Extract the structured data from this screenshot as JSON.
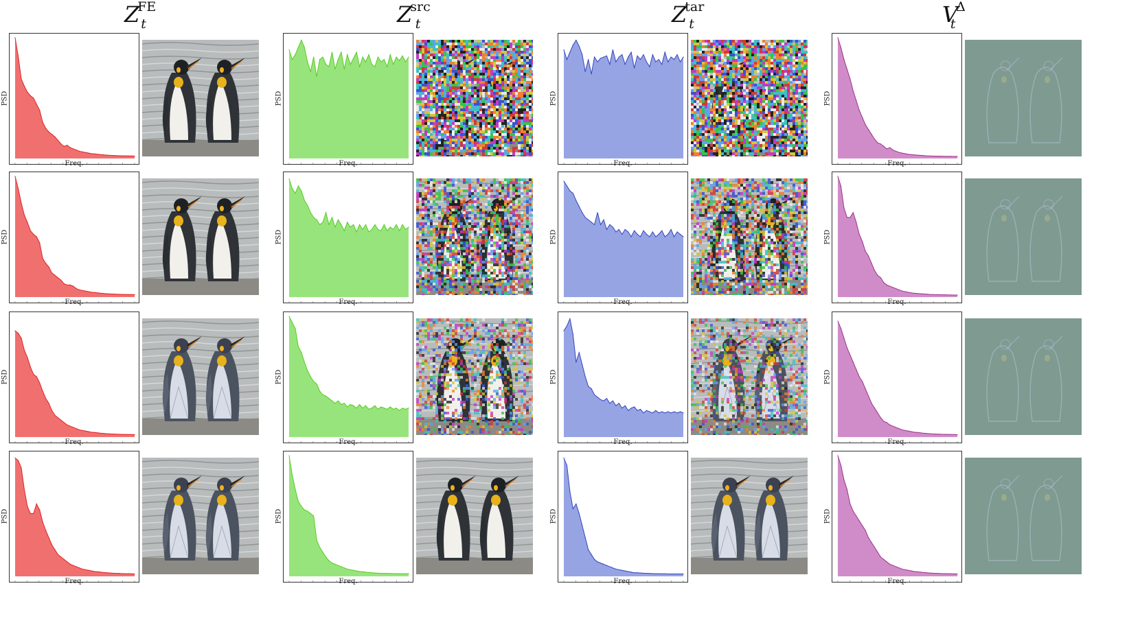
{
  "figure": {
    "columns": [
      {
        "key": "fe",
        "title_main": "Z",
        "title_sup": "FE",
        "title_sub": "t",
        "color": "#f07070",
        "stroke": "#dd2222"
      },
      {
        "key": "src",
        "title_main": "Z",
        "title_sup": "src",
        "title_sub": "t",
        "color": "#98e47c",
        "stroke": "#55cc22"
      },
      {
        "key": "tar",
        "title_main": "Z",
        "title_sup": "tar",
        "title_sub": "t",
        "color": "#96a4e4",
        "stroke": "#3344bb"
      },
      {
        "key": "vd",
        "title_main": "V",
        "title_sup": "Δ",
        "title_sub": "t",
        "color": "#d08cc8",
        "stroke": "#993388"
      }
    ],
    "axis_x_label": "Freq.",
    "axis_y_label": "PSD"
  },
  "chart_data": {
    "type": "area",
    "xlabel": "Freq.",
    "ylabel": "PSD",
    "ylim": [
      0,
      1
    ],
    "x_count": 40,
    "panels": [
      {
        "column": "fe",
        "row": 1,
        "values": [
          1.0,
          0.85,
          0.66,
          0.6,
          0.55,
          0.52,
          0.5,
          0.45,
          0.4,
          0.3,
          0.25,
          0.22,
          0.2,
          0.18,
          0.15,
          0.12,
          0.1,
          0.11,
          0.09,
          0.08,
          0.07,
          0.06,
          0.055,
          0.05,
          0.045,
          0.04,
          0.038,
          0.035,
          0.032,
          0.03,
          0.028,
          0.026,
          0.025,
          0.024,
          0.023,
          0.022,
          0.022,
          0.021,
          0.021,
          0.02
        ]
      },
      {
        "column": "fe",
        "row": 2,
        "values": [
          1.0,
          0.9,
          0.78,
          0.68,
          0.62,
          0.55,
          0.52,
          0.5,
          0.45,
          0.32,
          0.28,
          0.25,
          0.2,
          0.18,
          0.16,
          0.14,
          0.11,
          0.1,
          0.1,
          0.09,
          0.07,
          0.06,
          0.055,
          0.05,
          0.045,
          0.04,
          0.038,
          0.035,
          0.032,
          0.03,
          0.028,
          0.026,
          0.025,
          0.024,
          0.023,
          0.022,
          0.022,
          0.021,
          0.021,
          0.02
        ]
      },
      {
        "column": "fe",
        "row": 3,
        "values": [
          0.88,
          0.86,
          0.82,
          0.72,
          0.66,
          0.58,
          0.52,
          0.5,
          0.45,
          0.38,
          0.32,
          0.28,
          0.22,
          0.18,
          0.16,
          0.14,
          0.12,
          0.1,
          0.09,
          0.08,
          0.07,
          0.06,
          0.055,
          0.05,
          0.045,
          0.04,
          0.038,
          0.035,
          0.032,
          0.03,
          0.028,
          0.026,
          0.025,
          0.024,
          0.023,
          0.022,
          0.022,
          0.021,
          0.021,
          0.02
        ]
      },
      {
        "column": "fe",
        "row": 4,
        "values": [
          0.98,
          0.96,
          0.9,
          0.72,
          0.58,
          0.52,
          0.52,
          0.6,
          0.55,
          0.45,
          0.38,
          0.32,
          0.26,
          0.22,
          0.18,
          0.16,
          0.14,
          0.12,
          0.1,
          0.09,
          0.08,
          0.07,
          0.06,
          0.055,
          0.05,
          0.045,
          0.04,
          0.038,
          0.035,
          0.032,
          0.03,
          0.028,
          0.026,
          0.025,
          0.024,
          0.023,
          0.022,
          0.022,
          0.021,
          0.02
        ]
      },
      {
        "column": "src",
        "row": 1,
        "values": [
          0.9,
          0.82,
          0.86,
          0.92,
          0.98,
          0.92,
          0.8,
          0.72,
          0.84,
          0.68,
          0.82,
          0.84,
          0.78,
          0.76,
          0.88,
          0.74,
          0.82,
          0.88,
          0.74,
          0.86,
          0.78,
          0.83,
          0.88,
          0.76,
          0.84,
          0.8,
          0.86,
          0.78,
          0.76,
          0.84,
          0.8,
          0.82,
          0.76,
          0.86,
          0.78,
          0.84,
          0.81,
          0.85,
          0.8,
          0.84
        ]
      },
      {
        "column": "src",
        "row": 2,
        "values": [
          0.98,
          0.9,
          0.86,
          0.92,
          0.88,
          0.8,
          0.76,
          0.7,
          0.66,
          0.64,
          0.6,
          0.62,
          0.7,
          0.6,
          0.66,
          0.58,
          0.64,
          0.6,
          0.55,
          0.62,
          0.58,
          0.6,
          0.54,
          0.6,
          0.56,
          0.6,
          0.54,
          0.56,
          0.6,
          0.56,
          0.55,
          0.6,
          0.55,
          0.58,
          0.56,
          0.6,
          0.55,
          0.6,
          0.56,
          0.58
        ]
      },
      {
        "column": "src",
        "row": 3,
        "values": [
          1.0,
          0.95,
          0.9,
          0.75,
          0.7,
          0.62,
          0.55,
          0.5,
          0.46,
          0.44,
          0.38,
          0.35,
          0.34,
          0.32,
          0.3,
          0.28,
          0.3,
          0.27,
          0.28,
          0.25,
          0.27,
          0.26,
          0.24,
          0.27,
          0.24,
          0.26,
          0.23,
          0.24,
          0.26,
          0.23,
          0.25,
          0.24,
          0.23,
          0.25,
          0.23,
          0.24,
          0.22,
          0.24,
          0.23,
          0.24
        ]
      },
      {
        "column": "src",
        "row": 4,
        "values": [
          1.0,
          0.84,
          0.72,
          0.62,
          0.58,
          0.55,
          0.54,
          0.52,
          0.5,
          0.3,
          0.24,
          0.2,
          0.16,
          0.13,
          0.11,
          0.1,
          0.09,
          0.08,
          0.07,
          0.06,
          0.055,
          0.05,
          0.045,
          0.04,
          0.038,
          0.035,
          0.032,
          0.03,
          0.028,
          0.026,
          0.025,
          0.025,
          0.024,
          0.024,
          0.023,
          0.023,
          0.022,
          0.022,
          0.022,
          0.022
        ]
      },
      {
        "column": "tar",
        "row": 1,
        "values": [
          0.9,
          0.82,
          0.88,
          0.94,
          0.98,
          0.93,
          0.86,
          0.72,
          0.82,
          0.7,
          0.84,
          0.8,
          0.83,
          0.84,
          0.85,
          0.78,
          0.9,
          0.8,
          0.84,
          0.86,
          0.78,
          0.84,
          0.88,
          0.75,
          0.85,
          0.82,
          0.86,
          0.8,
          0.76,
          0.86,
          0.8,
          0.82,
          0.78,
          0.88,
          0.8,
          0.84,
          0.82,
          0.86,
          0.8,
          0.84
        ]
      },
      {
        "column": "tar",
        "row": 2,
        "values": [
          0.96,
          0.92,
          0.88,
          0.86,
          0.8,
          0.75,
          0.7,
          0.66,
          0.64,
          0.62,
          0.6,
          0.7,
          0.6,
          0.64,
          0.56,
          0.6,
          0.58,
          0.54,
          0.56,
          0.52,
          0.56,
          0.54,
          0.5,
          0.55,
          0.52,
          0.5,
          0.55,
          0.52,
          0.5,
          0.54,
          0.5,
          0.52,
          0.55,
          0.5,
          0.52,
          0.56,
          0.5,
          0.54,
          0.52,
          0.5
        ]
      },
      {
        "column": "tar",
        "row": 3,
        "values": [
          0.88,
          0.92,
          0.98,
          0.85,
          0.62,
          0.7,
          0.6,
          0.5,
          0.42,
          0.4,
          0.35,
          0.33,
          0.31,
          0.3,
          0.32,
          0.28,
          0.3,
          0.26,
          0.28,
          0.24,
          0.26,
          0.22,
          0.24,
          0.25,
          0.22,
          0.23,
          0.2,
          0.22,
          0.21,
          0.2,
          0.22,
          0.2,
          0.21,
          0.2,
          0.21,
          0.2,
          0.21,
          0.2,
          0.21,
          0.2
        ]
      },
      {
        "column": "tar",
        "row": 4,
        "values": [
          0.98,
          0.92,
          0.7,
          0.56,
          0.6,
          0.52,
          0.42,
          0.32,
          0.22,
          0.18,
          0.14,
          0.12,
          0.11,
          0.1,
          0.09,
          0.08,
          0.07,
          0.06,
          0.055,
          0.05,
          0.045,
          0.04,
          0.035,
          0.03,
          0.03,
          0.028,
          0.026,
          0.025,
          0.024,
          0.023,
          0.022,
          0.022,
          0.021,
          0.021,
          0.02,
          0.02,
          0.02,
          0.02,
          0.02,
          0.02
        ]
      },
      {
        "column": "vd",
        "row": 1,
        "values": [
          1.0,
          0.92,
          0.82,
          0.74,
          0.66,
          0.56,
          0.48,
          0.4,
          0.34,
          0.28,
          0.24,
          0.2,
          0.16,
          0.13,
          0.12,
          0.1,
          0.08,
          0.09,
          0.07,
          0.06,
          0.05,
          0.045,
          0.04,
          0.035,
          0.032,
          0.03,
          0.028,
          0.026,
          0.024,
          0.022,
          0.021,
          0.02,
          0.02,
          0.019,
          0.019,
          0.018,
          0.018,
          0.018,
          0.017,
          0.017
        ]
      },
      {
        "column": "vd",
        "row": 2,
        "values": [
          1.0,
          0.92,
          0.74,
          0.66,
          0.66,
          0.7,
          0.62,
          0.52,
          0.46,
          0.38,
          0.34,
          0.28,
          0.22,
          0.18,
          0.16,
          0.12,
          0.1,
          0.09,
          0.08,
          0.07,
          0.06,
          0.05,
          0.045,
          0.04,
          0.035,
          0.032,
          0.03,
          0.028,
          0.026,
          0.024,
          0.022,
          0.021,
          0.02,
          0.02,
          0.019,
          0.019,
          0.018,
          0.018,
          0.017,
          0.017
        ]
      },
      {
        "column": "vd",
        "row": 3,
        "values": [
          0.96,
          0.9,
          0.82,
          0.74,
          0.68,
          0.62,
          0.56,
          0.5,
          0.46,
          0.4,
          0.34,
          0.28,
          0.24,
          0.2,
          0.16,
          0.13,
          0.12,
          0.1,
          0.09,
          0.08,
          0.07,
          0.06,
          0.055,
          0.05,
          0.045,
          0.04,
          0.038,
          0.035,
          0.032,
          0.03,
          0.028,
          0.026,
          0.025,
          0.024,
          0.023,
          0.022,
          0.022,
          0.021,
          0.021,
          0.02
        ]
      },
      {
        "column": "vd",
        "row": 4,
        "values": [
          1.0,
          0.92,
          0.8,
          0.72,
          0.6,
          0.54,
          0.5,
          0.46,
          0.42,
          0.38,
          0.32,
          0.28,
          0.24,
          0.2,
          0.16,
          0.14,
          0.12,
          0.1,
          0.09,
          0.08,
          0.07,
          0.06,
          0.055,
          0.05,
          0.045,
          0.04,
          0.038,
          0.035,
          0.032,
          0.03,
          0.028,
          0.026,
          0.025,
          0.024,
          0.023,
          0.022,
          0.022,
          0.021,
          0.021,
          0.02
        ]
      }
    ]
  },
  "images": {
    "noise_levels": {
      "fe": [
        0,
        0,
        0,
        0
      ],
      "src": [
        1.0,
        0.72,
        0.5,
        0.0
      ],
      "tar": [
        1.0,
        0.72,
        0.45,
        0.0
      ],
      "vd": [
        0,
        0,
        0,
        0
      ]
    },
    "styles": {
      "fe": [
        "photo",
        "photo",
        "origami",
        "origami"
      ],
      "src": [
        "photo",
        "photo",
        "photo",
        "photo"
      ],
      "tar": [
        "photo",
        "photo",
        "origami",
        "origami"
      ],
      "vd": [
        "ghost",
        "ghost",
        "ghost",
        "ghost"
      ]
    }
  }
}
